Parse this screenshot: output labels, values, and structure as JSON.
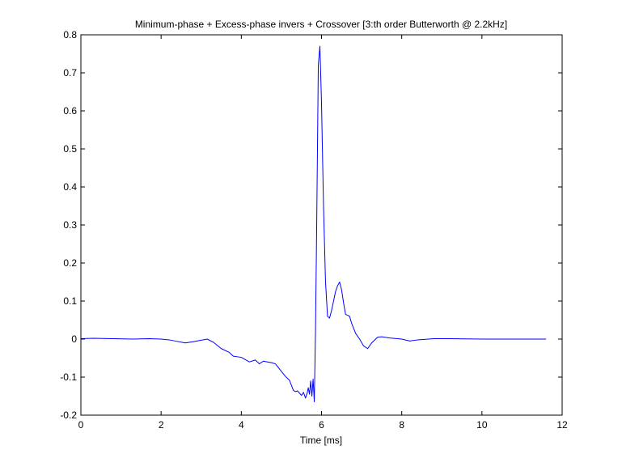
{
  "chart_data": {
    "type": "line",
    "title": "Minimum-phase + Excess-phase invers + Crossover [3:th order Butterworth @ 2.2kHz]",
    "xlabel": "Time [ms]",
    "ylabel": "",
    "xlim": [
      0,
      12
    ],
    "ylim": [
      -0.2,
      0.8
    ],
    "xticks": [
      0,
      2,
      4,
      6,
      8,
      10,
      12
    ],
    "yticks": [
      -0.2,
      -0.1,
      0,
      0.1,
      0.2,
      0.3,
      0.4,
      0.5,
      0.6,
      0.7,
      0.8
    ],
    "xtick_labels": [
      "0",
      "2",
      "4",
      "6",
      "8",
      "10",
      "12"
    ],
    "ytick_labels": [
      "-0.2",
      "-0.1",
      "0",
      "0.1",
      "0.2",
      "0.3",
      "0.4",
      "0.5",
      "0.6",
      "0.7",
      "0.8"
    ],
    "grid": false,
    "series": [
      {
        "color": "#0000ff",
        "x": [
          0,
          0.3,
          0.8,
          1.3,
          1.7,
          2.0,
          2.2,
          2.4,
          2.6,
          2.8,
          3.0,
          3.15,
          3.3,
          3.5,
          3.7,
          3.8,
          4.0,
          4.2,
          4.35,
          4.45,
          4.55,
          4.65,
          4.75,
          4.85,
          5.0,
          5.1,
          5.2,
          5.3,
          5.35,
          5.4,
          5.45,
          5.5,
          5.55,
          5.6,
          5.64,
          5.67,
          5.7,
          5.73,
          5.76,
          5.79,
          5.82,
          5.85,
          5.88,
          5.92,
          5.96,
          6.0,
          6.05,
          6.1,
          6.15,
          6.2,
          6.25,
          6.3,
          6.35,
          6.4,
          6.45,
          6.5,
          6.55,
          6.6,
          6.7,
          6.75,
          6.85,
          6.95,
          7.05,
          7.15,
          7.25,
          7.4,
          7.5,
          7.7,
          8.0,
          8.2,
          8.4,
          8.8,
          9.2,
          10.0,
          11.0,
          11.6
        ],
        "y": [
          0.001,
          0.002,
          0.001,
          0.0,
          0.001,
          0.0,
          -0.002,
          -0.006,
          -0.01,
          -0.007,
          -0.003,
          0.0,
          -0.008,
          -0.025,
          -0.035,
          -0.045,
          -0.048,
          -0.06,
          -0.055,
          -0.065,
          -0.058,
          -0.06,
          -0.062,
          -0.065,
          -0.085,
          -0.098,
          -0.108,
          -0.135,
          -0.138,
          -0.136,
          -0.142,
          -0.148,
          -0.14,
          -0.155,
          -0.143,
          -0.128,
          -0.145,
          -0.11,
          -0.15,
          -0.105,
          -0.165,
          0.02,
          0.3,
          0.72,
          0.77,
          0.62,
          0.35,
          0.15,
          0.06,
          0.055,
          0.075,
          0.1,
          0.125,
          0.14,
          0.15,
          0.13,
          0.095,
          0.065,
          0.06,
          0.042,
          0.015,
          0.0,
          -0.018,
          -0.025,
          -0.01,
          0.005,
          0.006,
          0.003,
          0.0,
          -0.005,
          -0.002,
          0.001,
          0.001,
          0.0,
          0.0,
          0.0
        ]
      }
    ]
  }
}
